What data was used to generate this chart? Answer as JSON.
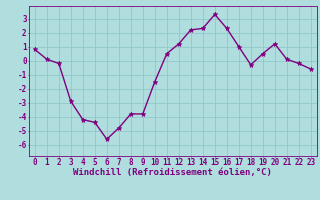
{
  "x": [
    0,
    1,
    2,
    3,
    4,
    5,
    6,
    7,
    8,
    9,
    10,
    11,
    12,
    13,
    14,
    15,
    16,
    17,
    18,
    19,
    20,
    21,
    22,
    23
  ],
  "y": [
    0.8,
    0.1,
    -0.2,
    -2.9,
    -4.2,
    -4.4,
    -5.6,
    -4.8,
    -3.8,
    -3.8,
    -1.5,
    0.5,
    1.2,
    2.2,
    2.3,
    3.3,
    2.3,
    1.0,
    -0.3,
    0.5,
    1.2,
    0.1,
    -0.2,
    -0.6
  ],
  "color": "#800080",
  "bg_color": "#b0dede",
  "grid_color": "#90c8c8",
  "xlabel": "Windchill (Refroidissement éolien,°C)",
  "ylim": [
    -6.8,
    3.9
  ],
  "xlim": [
    -0.5,
    23.5
  ],
  "yticks": [
    -6,
    -5,
    -4,
    -3,
    -2,
    -1,
    0,
    1,
    2,
    3
  ],
  "xticks": [
    0,
    1,
    2,
    3,
    4,
    5,
    6,
    7,
    8,
    9,
    10,
    11,
    12,
    13,
    14,
    15,
    16,
    17,
    18,
    19,
    20,
    21,
    22,
    23
  ],
  "marker": "*",
  "linewidth": 1.0,
  "markersize": 3.5,
  "tick_fontsize": 5.5,
  "xlabel_fontsize": 6.5,
  "font_family": "monospace"
}
